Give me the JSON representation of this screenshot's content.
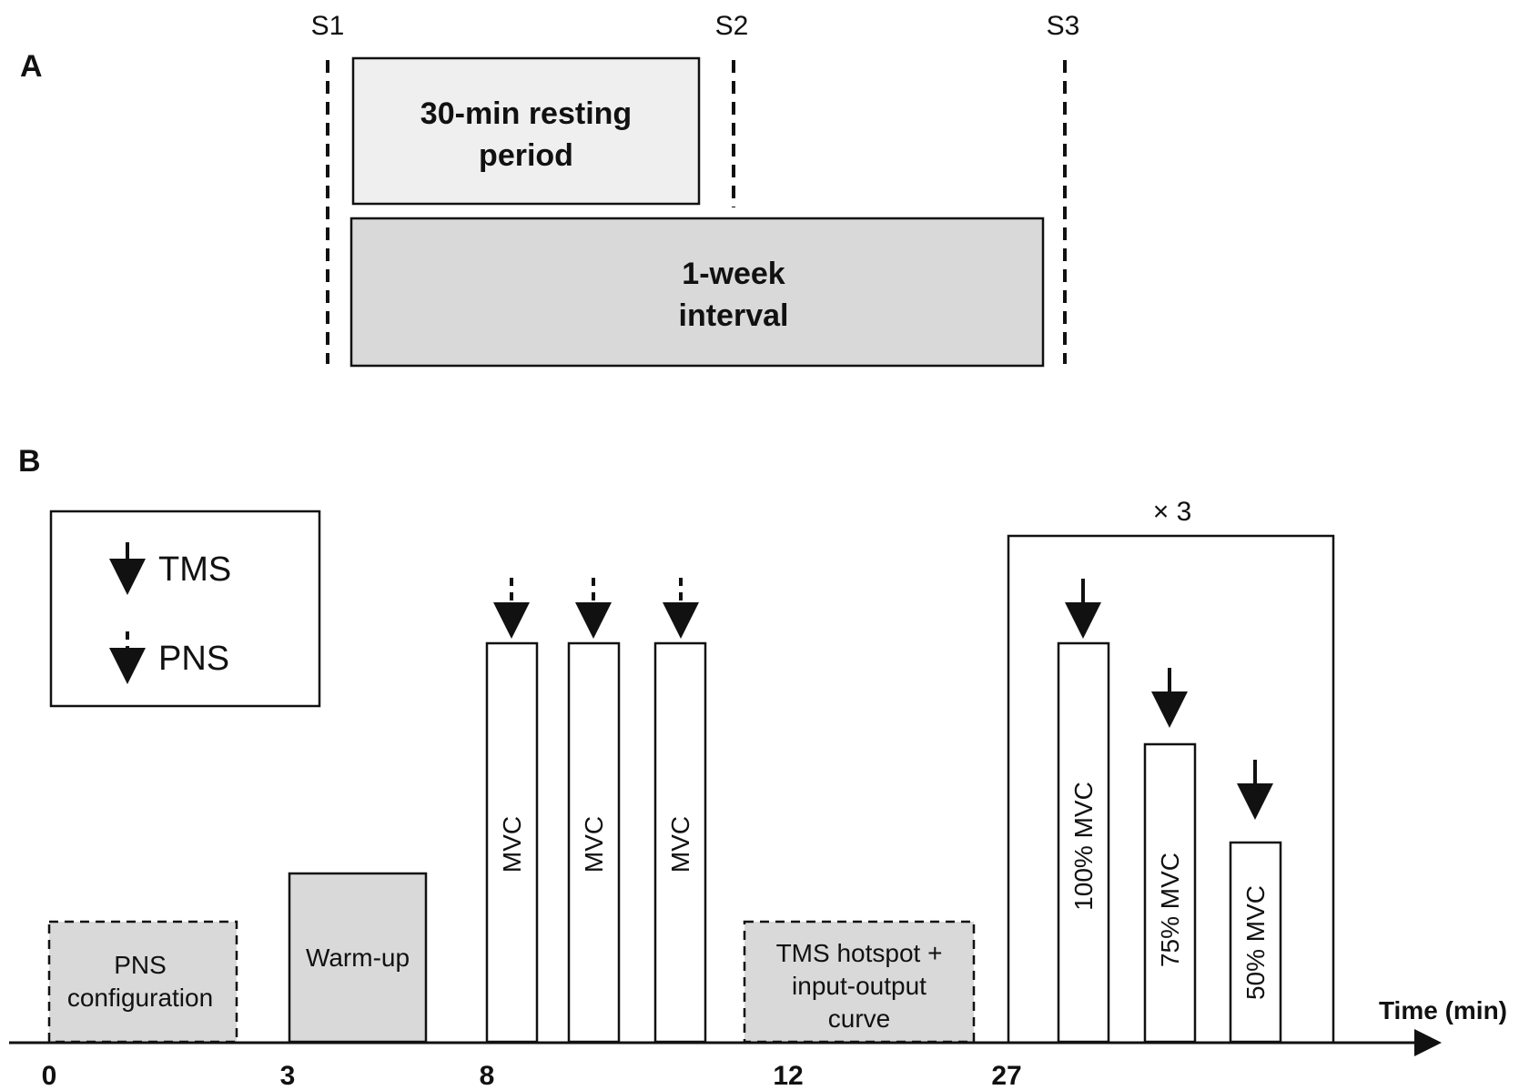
{
  "panel_a": {
    "label": "A",
    "sessions": [
      "S1",
      "S2",
      "S3"
    ],
    "resting_box": {
      "line1": "30-min resting",
      "line2": "period"
    },
    "interval_box": {
      "line1": "1-week",
      "line2": "interval"
    }
  },
  "panel_b": {
    "label": "B",
    "legend": {
      "tms": "TMS",
      "pns": "PNS"
    },
    "blocks": {
      "pns_config": {
        "line1": "PNS",
        "line2": "configuration"
      },
      "warmup": "Warm-up",
      "mvc": [
        "MVC",
        "MVC",
        "MVC"
      ],
      "tms_hotspot": {
        "line1": "TMS hotspot +",
        "line2": "input-output",
        "line3": "curve"
      },
      "graded": [
        "100% MVC",
        "75% MVC",
        "50% MVC"
      ]
    },
    "repeat_label": "× 3",
    "axis_label": "Time (min)",
    "time_ticks": [
      "0",
      "3",
      "8",
      "12",
      "27"
    ]
  },
  "colors": {
    "light_gray": "#efefef",
    "mid_gray": "#d9d9d9",
    "stroke": "#111111"
  }
}
